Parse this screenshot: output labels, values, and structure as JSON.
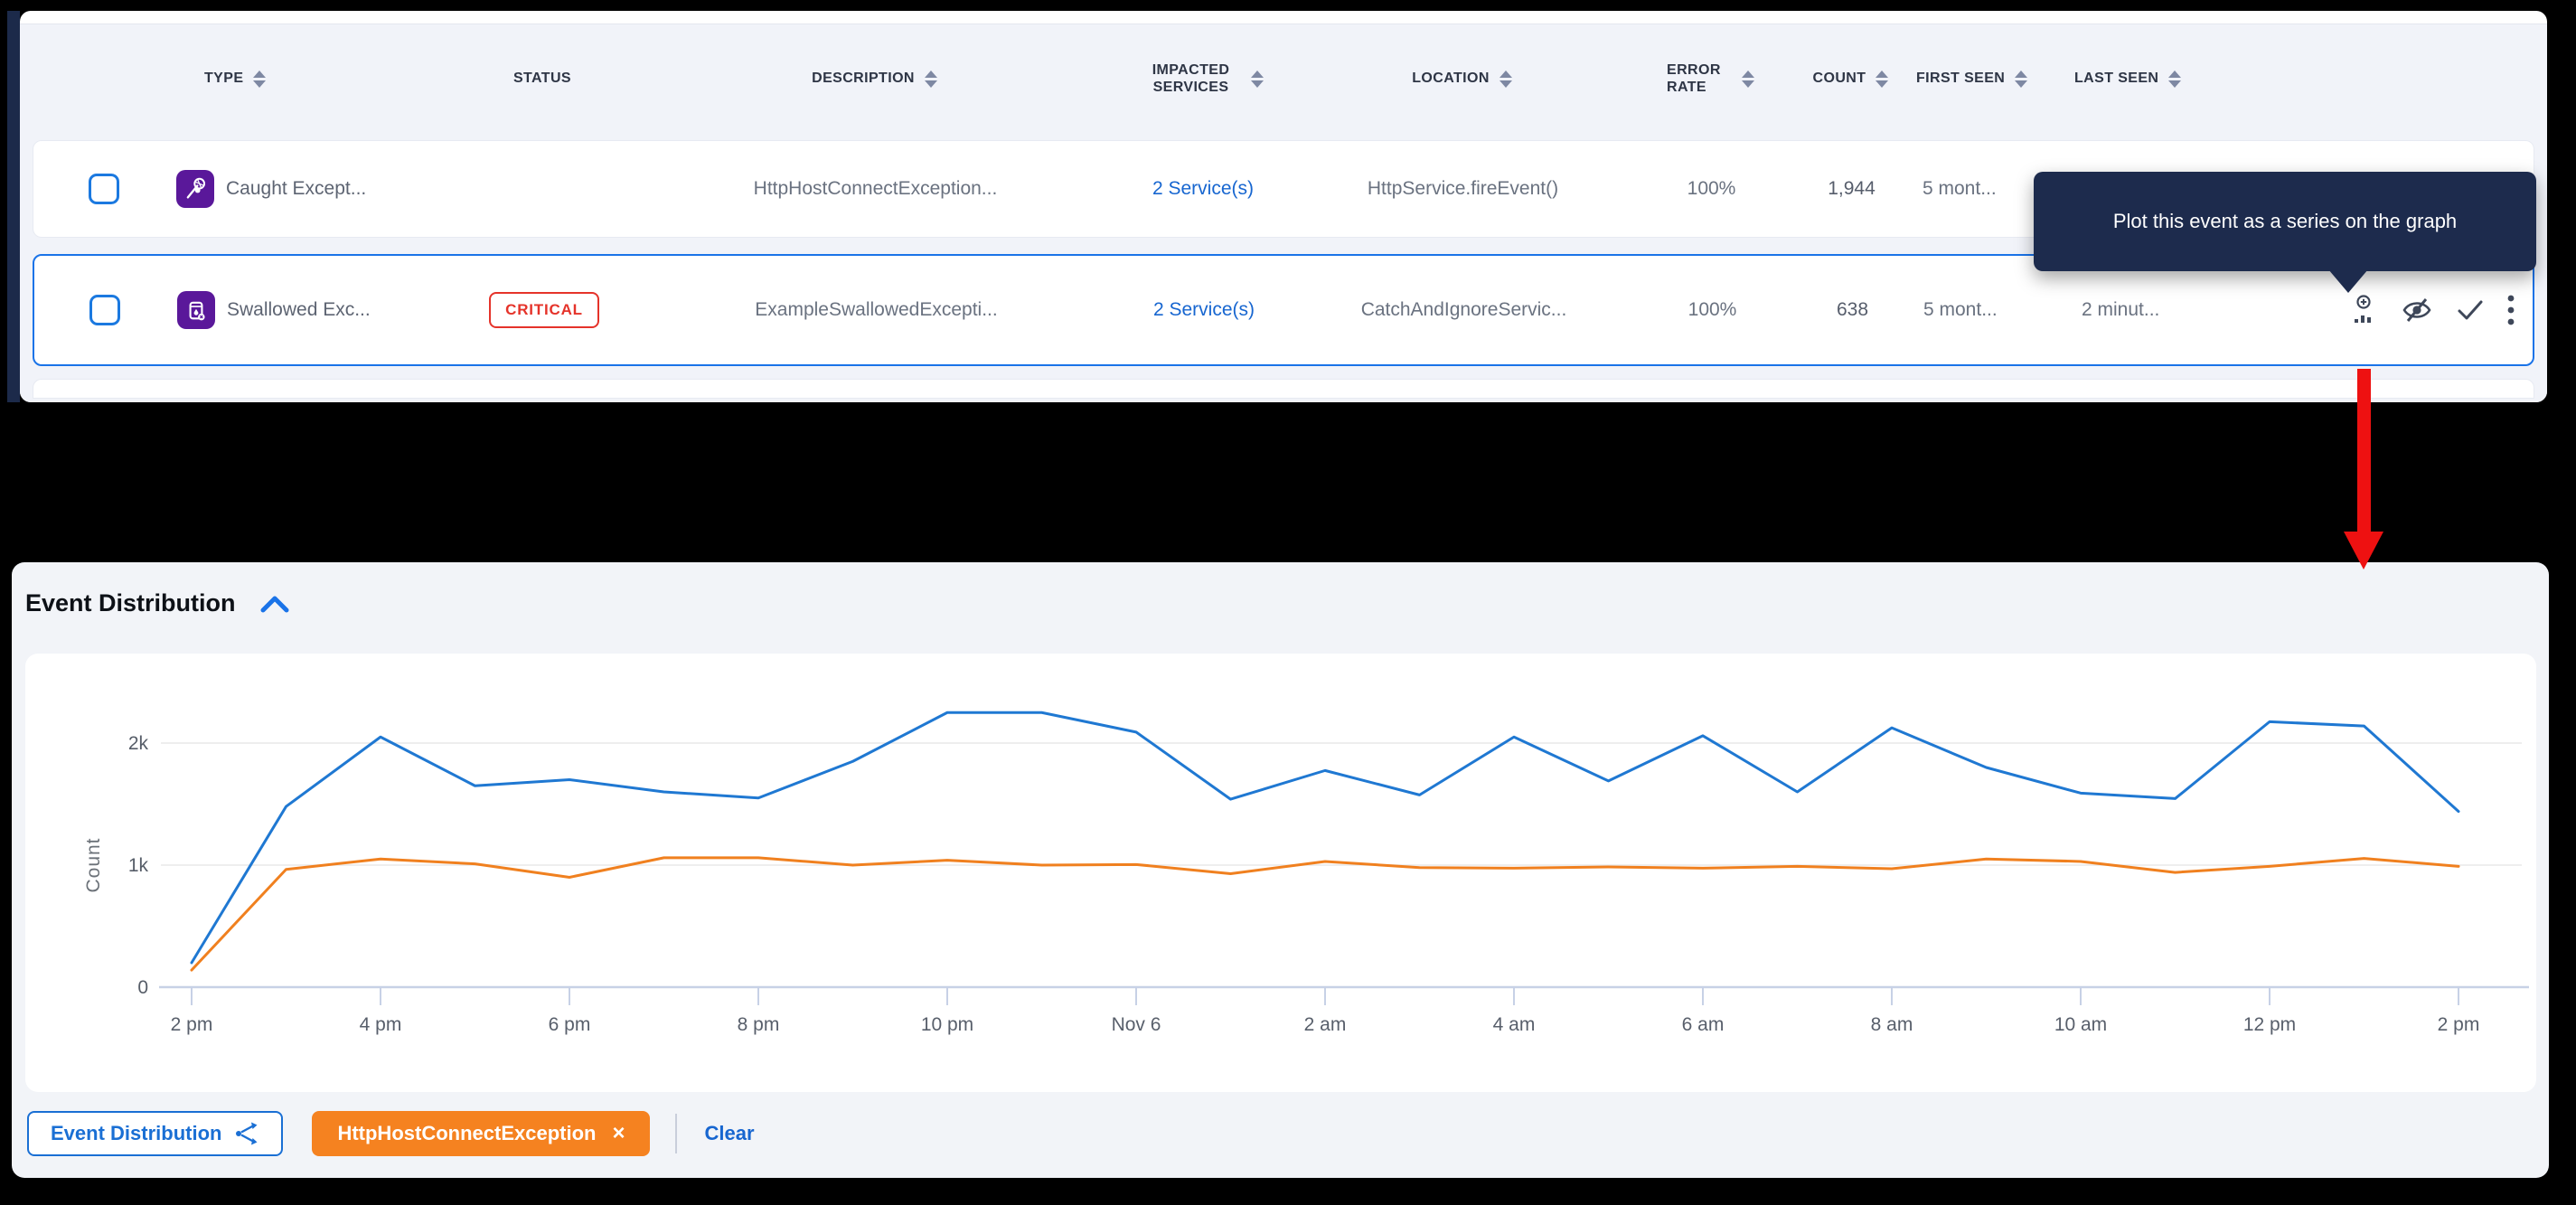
{
  "table": {
    "columns": [
      {
        "label": "TYPE",
        "sortable": true
      },
      {
        "label": "STATUS",
        "sortable": false
      },
      {
        "label": "DESCRIPTION",
        "sortable": true
      },
      {
        "label": "IMPACTED SERVICES",
        "sortable": true
      },
      {
        "label": "LOCATION",
        "sortable": true
      },
      {
        "label": "ERROR RATE",
        "sortable": true
      },
      {
        "label": "COUNT",
        "sortable": true
      },
      {
        "label": "FIRST SEEN",
        "sortable": true
      },
      {
        "label": "LAST SEEN",
        "sortable": true
      }
    ],
    "rows": [
      {
        "type": "Caught Except...",
        "type_icon": "caught-exception",
        "status_badge": "",
        "description": "HttpHostConnectException...",
        "impacted_services": "2 Service(s)",
        "location": "HttpService.fireEvent()",
        "error_rate": "100%",
        "count": "1,944",
        "first_seen": "5 mont...",
        "last_seen": "",
        "selected": false
      },
      {
        "type": "Swallowed Exc...",
        "type_icon": "swallowed-exception",
        "status_badge": "CRITICAL",
        "description": "ExampleSwallowedExcepti...",
        "impacted_services": "2 Service(s)",
        "location": "CatchAndIgnoreServic...",
        "error_rate": "100%",
        "count": "638",
        "first_seen": "5 mont...",
        "last_seen": "2 minut...",
        "selected": true
      }
    ]
  },
  "tooltip": {
    "text": "Plot this event as a series on the graph"
  },
  "section": {
    "title": "Event Distribution"
  },
  "chart_data": {
    "type": "line",
    "title": "Event Distribution",
    "xlabel": "",
    "ylabel": "Count",
    "ylim": [
      0,
      2400
    ],
    "grid": "horizontal",
    "legend_position": "none",
    "y_ticks": [
      {
        "value": 0,
        "label": "0"
      },
      {
        "value": 1000,
        "label": "1k"
      },
      {
        "value": 2000,
        "label": "2k"
      }
    ],
    "x_tick_labels": [
      "2 pm",
      "4 pm",
      "6 pm",
      "8 pm",
      "10 pm",
      "Nov 6",
      "2 am",
      "4 am",
      "6 am",
      "8 am",
      "10 am",
      "12 pm",
      "2 pm"
    ],
    "points_per_tick": 2,
    "series": [
      {
        "name": "Event Distribution",
        "color": "#1f78d2",
        "values": [
          200,
          1480,
          2050,
          1650,
          1700,
          1600,
          1550,
          1850,
          2250,
          2250,
          2090,
          1540,
          1775,
          1575,
          2050,
          1690,
          2060,
          1600,
          2125,
          1800,
          1590,
          1545,
          2175,
          2140,
          1440
        ]
      },
      {
        "name": "HttpHostConnectException",
        "color": "#f0801f",
        "values": [
          140,
          965,
          1050,
          1010,
          900,
          1060,
          1060,
          1000,
          1040,
          1000,
          1005,
          930,
          1030,
          980,
          975,
          985,
          975,
          990,
          970,
          1050,
          1030,
          940,
          990,
          1055,
          990
        ]
      }
    ]
  },
  "footer": {
    "series_button_label": "Event Distribution",
    "chip_label": "HttpHostConnectException",
    "chip_remove": "×",
    "clear_label": "Clear"
  },
  "colors": {
    "accent_blue": "#1a73e8",
    "link_blue": "#1766d0",
    "critical_red": "#e5332a",
    "chip_orange": "#f58220",
    "tooltip_navy": "#1d2b4d",
    "annotation_red": "#ee1111",
    "type_icon_purple": "#5a189a"
  }
}
